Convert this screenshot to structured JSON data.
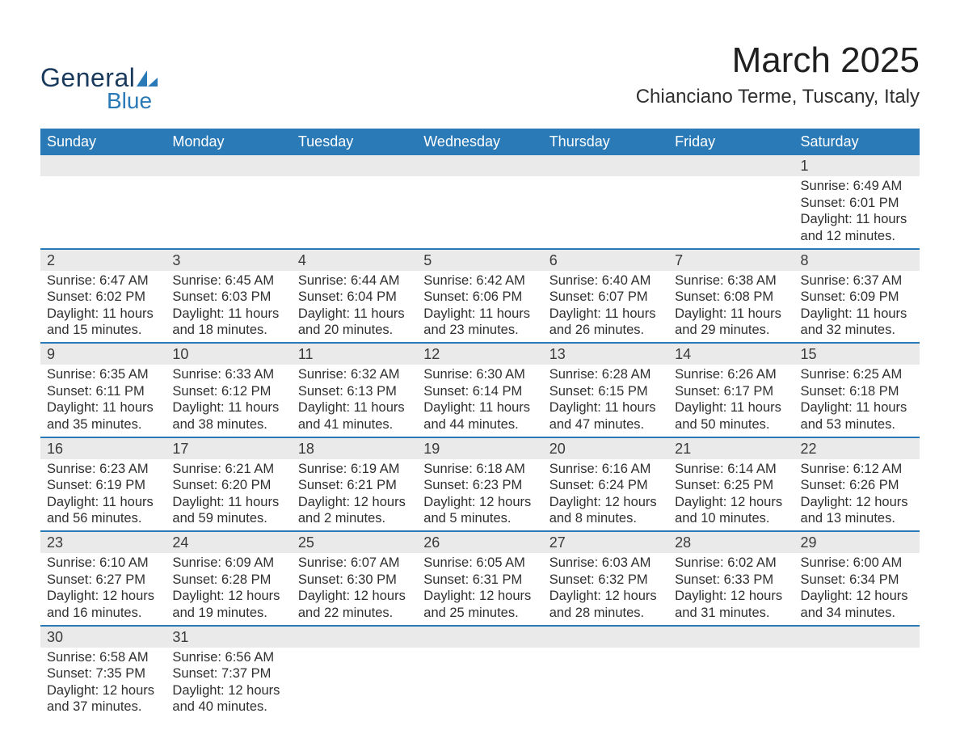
{
  "logo": {
    "text1": "General",
    "text2": "Blue",
    "shape_color": "#2a7ab8",
    "text1_color": "#1a3a5c"
  },
  "title": "March 2025",
  "location": "Chianciano Terme, Tuscany, Italy",
  "colors": {
    "header_bg": "#2a7ab8",
    "header_text": "#ffffff",
    "daynum_bg": "#eaeaea",
    "border": "#2a7ab8",
    "text": "#303030"
  },
  "weekday_labels": [
    "Sunday",
    "Monday",
    "Tuesday",
    "Wednesday",
    "Thursday",
    "Friday",
    "Saturday"
  ],
  "weeks": [
    [
      null,
      null,
      null,
      null,
      null,
      null,
      {
        "n": "1",
        "sunrise": "Sunrise: 6:49 AM",
        "sunset": "Sunset: 6:01 PM",
        "d1": "Daylight: 11 hours",
        "d2": "and 12 minutes."
      }
    ],
    [
      {
        "n": "2",
        "sunrise": "Sunrise: 6:47 AM",
        "sunset": "Sunset: 6:02 PM",
        "d1": "Daylight: 11 hours",
        "d2": "and 15 minutes."
      },
      {
        "n": "3",
        "sunrise": "Sunrise: 6:45 AM",
        "sunset": "Sunset: 6:03 PM",
        "d1": "Daylight: 11 hours",
        "d2": "and 18 minutes."
      },
      {
        "n": "4",
        "sunrise": "Sunrise: 6:44 AM",
        "sunset": "Sunset: 6:04 PM",
        "d1": "Daylight: 11 hours",
        "d2": "and 20 minutes."
      },
      {
        "n": "5",
        "sunrise": "Sunrise: 6:42 AM",
        "sunset": "Sunset: 6:06 PM",
        "d1": "Daylight: 11 hours",
        "d2": "and 23 minutes."
      },
      {
        "n": "6",
        "sunrise": "Sunrise: 6:40 AM",
        "sunset": "Sunset: 6:07 PM",
        "d1": "Daylight: 11 hours",
        "d2": "and 26 minutes."
      },
      {
        "n": "7",
        "sunrise": "Sunrise: 6:38 AM",
        "sunset": "Sunset: 6:08 PM",
        "d1": "Daylight: 11 hours",
        "d2": "and 29 minutes."
      },
      {
        "n": "8",
        "sunrise": "Sunrise: 6:37 AM",
        "sunset": "Sunset: 6:09 PM",
        "d1": "Daylight: 11 hours",
        "d2": "and 32 minutes."
      }
    ],
    [
      {
        "n": "9",
        "sunrise": "Sunrise: 6:35 AM",
        "sunset": "Sunset: 6:11 PM",
        "d1": "Daylight: 11 hours",
        "d2": "and 35 minutes."
      },
      {
        "n": "10",
        "sunrise": "Sunrise: 6:33 AM",
        "sunset": "Sunset: 6:12 PM",
        "d1": "Daylight: 11 hours",
        "d2": "and 38 minutes."
      },
      {
        "n": "11",
        "sunrise": "Sunrise: 6:32 AM",
        "sunset": "Sunset: 6:13 PM",
        "d1": "Daylight: 11 hours",
        "d2": "and 41 minutes."
      },
      {
        "n": "12",
        "sunrise": "Sunrise: 6:30 AM",
        "sunset": "Sunset: 6:14 PM",
        "d1": "Daylight: 11 hours",
        "d2": "and 44 minutes."
      },
      {
        "n": "13",
        "sunrise": "Sunrise: 6:28 AM",
        "sunset": "Sunset: 6:15 PM",
        "d1": "Daylight: 11 hours",
        "d2": "and 47 minutes."
      },
      {
        "n": "14",
        "sunrise": "Sunrise: 6:26 AM",
        "sunset": "Sunset: 6:17 PM",
        "d1": "Daylight: 11 hours",
        "d2": "and 50 minutes."
      },
      {
        "n": "15",
        "sunrise": "Sunrise: 6:25 AM",
        "sunset": "Sunset: 6:18 PM",
        "d1": "Daylight: 11 hours",
        "d2": "and 53 minutes."
      }
    ],
    [
      {
        "n": "16",
        "sunrise": "Sunrise: 6:23 AM",
        "sunset": "Sunset: 6:19 PM",
        "d1": "Daylight: 11 hours",
        "d2": "and 56 minutes."
      },
      {
        "n": "17",
        "sunrise": "Sunrise: 6:21 AM",
        "sunset": "Sunset: 6:20 PM",
        "d1": "Daylight: 11 hours",
        "d2": "and 59 minutes."
      },
      {
        "n": "18",
        "sunrise": "Sunrise: 6:19 AM",
        "sunset": "Sunset: 6:21 PM",
        "d1": "Daylight: 12 hours",
        "d2": "and 2 minutes."
      },
      {
        "n": "19",
        "sunrise": "Sunrise: 6:18 AM",
        "sunset": "Sunset: 6:23 PM",
        "d1": "Daylight: 12 hours",
        "d2": "and 5 minutes."
      },
      {
        "n": "20",
        "sunrise": "Sunrise: 6:16 AM",
        "sunset": "Sunset: 6:24 PM",
        "d1": "Daylight: 12 hours",
        "d2": "and 8 minutes."
      },
      {
        "n": "21",
        "sunrise": "Sunrise: 6:14 AM",
        "sunset": "Sunset: 6:25 PM",
        "d1": "Daylight: 12 hours",
        "d2": "and 10 minutes."
      },
      {
        "n": "22",
        "sunrise": "Sunrise: 6:12 AM",
        "sunset": "Sunset: 6:26 PM",
        "d1": "Daylight: 12 hours",
        "d2": "and 13 minutes."
      }
    ],
    [
      {
        "n": "23",
        "sunrise": "Sunrise: 6:10 AM",
        "sunset": "Sunset: 6:27 PM",
        "d1": "Daylight: 12 hours",
        "d2": "and 16 minutes."
      },
      {
        "n": "24",
        "sunrise": "Sunrise: 6:09 AM",
        "sunset": "Sunset: 6:28 PM",
        "d1": "Daylight: 12 hours",
        "d2": "and 19 minutes."
      },
      {
        "n": "25",
        "sunrise": "Sunrise: 6:07 AM",
        "sunset": "Sunset: 6:30 PM",
        "d1": "Daylight: 12 hours",
        "d2": "and 22 minutes."
      },
      {
        "n": "26",
        "sunrise": "Sunrise: 6:05 AM",
        "sunset": "Sunset: 6:31 PM",
        "d1": "Daylight: 12 hours",
        "d2": "and 25 minutes."
      },
      {
        "n": "27",
        "sunrise": "Sunrise: 6:03 AM",
        "sunset": "Sunset: 6:32 PM",
        "d1": "Daylight: 12 hours",
        "d2": "and 28 minutes."
      },
      {
        "n": "28",
        "sunrise": "Sunrise: 6:02 AM",
        "sunset": "Sunset: 6:33 PM",
        "d1": "Daylight: 12 hours",
        "d2": "and 31 minutes."
      },
      {
        "n": "29",
        "sunrise": "Sunrise: 6:00 AM",
        "sunset": "Sunset: 6:34 PM",
        "d1": "Daylight: 12 hours",
        "d2": "and 34 minutes."
      }
    ],
    [
      {
        "n": "30",
        "sunrise": "Sunrise: 6:58 AM",
        "sunset": "Sunset: 7:35 PM",
        "d1": "Daylight: 12 hours",
        "d2": "and 37 minutes."
      },
      {
        "n": "31",
        "sunrise": "Sunrise: 6:56 AM",
        "sunset": "Sunset: 7:37 PM",
        "d1": "Daylight: 12 hours",
        "d2": "and 40 minutes."
      },
      null,
      null,
      null,
      null,
      null
    ]
  ]
}
